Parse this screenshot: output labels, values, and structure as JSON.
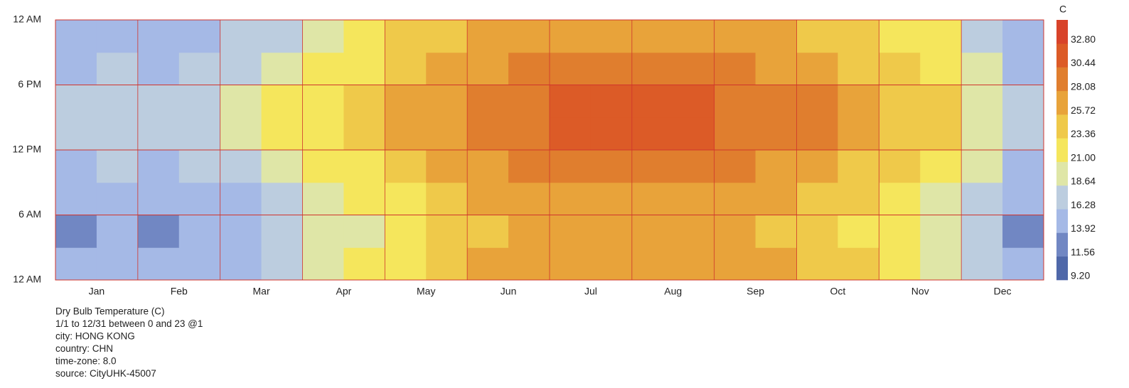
{
  "chart_data": {
    "type": "heatmap",
    "categories": [
      "Jan",
      "Feb",
      "Mar",
      "Apr",
      "May",
      "Jun",
      "Jul",
      "Aug",
      "Sep",
      "Oct",
      "Nov",
      "Dec"
    ],
    "hour_bins": [
      0,
      3,
      6,
      9,
      12,
      15,
      18,
      21,
      24
    ],
    "ylim": [
      0,
      24
    ],
    "yticks": [
      {
        "value": 0,
        "label": "12 AM"
      },
      {
        "value": 6,
        "label": "6 AM"
      },
      {
        "value": 12,
        "label": "12 PM"
      },
      {
        "value": 18,
        "label": "6 PM"
      },
      {
        "value": 24,
        "label": "12 AM"
      }
    ],
    "grid": true,
    "grid_color": "#d0342c",
    "values": [
      [
        14,
        14.5,
        14,
        14.5,
        16,
        17.5,
        19.5,
        21,
        23,
        24.5,
        26,
        26.5,
        27,
        27.3,
        27,
        27,
        26.5,
        26,
        25,
        23.5,
        22,
        20.5,
        17,
        14
      ],
      [
        13.5,
        14,
        13.5,
        14,
        15.5,
        17,
        19,
        20.5,
        22.5,
        24,
        25.5,
        26,
        26.5,
        26.8,
        26.5,
        26.5,
        26,
        25.5,
        24.5,
        23,
        21.5,
        20,
        16.5,
        13.5
      ],
      [
        14,
        14.5,
        14,
        14.5,
        16,
        17.5,
        19.5,
        21,
        23,
        24.5,
        26,
        26.5,
        27,
        27.3,
        27,
        27,
        26.5,
        26,
        25,
        23.5,
        22,
        20.5,
        17,
        14
      ],
      [
        16,
        16.5,
        16,
        16.5,
        18,
        19.5,
        21.5,
        23,
        25,
        26.5,
        28,
        28.5,
        29,
        29.3,
        29,
        29,
        28.5,
        28,
        27,
        25.5,
        24,
        22.5,
        19,
        16
      ],
      [
        17.5,
        18,
        17.5,
        18,
        19.5,
        21,
        23,
        24.5,
        26.5,
        28,
        29.5,
        30,
        30.5,
        30.8,
        30.5,
        30.5,
        30,
        29.5,
        28.5,
        27,
        25.5,
        24,
        20.5,
        17.5
      ],
      [
        17.5,
        18,
        17.5,
        18,
        19.5,
        21,
        23,
        24.5,
        26.5,
        28,
        29.5,
        30,
        30.5,
        30.8,
        30.5,
        30.5,
        30,
        29.5,
        28.5,
        27,
        25.5,
        24,
        20.5,
        17.5
      ],
      [
        16,
        16.5,
        16,
        16.5,
        18,
        19.5,
        21.5,
        23,
        25,
        26.5,
        28,
        28.5,
        29,
        29.3,
        29,
        29,
        28.5,
        28,
        27,
        25.5,
        24,
        22.5,
        19,
        16
      ],
      [
        14.7,
        15.2,
        14.7,
        15.2,
        16.7,
        18.2,
        20.2,
        21.7,
        23.7,
        25.2,
        26.7,
        27.2,
        27.7,
        28,
        27.7,
        27.7,
        27.2,
        26.7,
        25.7,
        24.2,
        22.7,
        21.2,
        17.7,
        14.7
      ]
    ],
    "legend_title": "C",
    "zlim": [
      9.2,
      35.16
    ],
    "zticks": [
      {
        "value": 9.2,
        "label": "9.20"
      },
      {
        "value": 11.56,
        "label": "11.56"
      },
      {
        "value": 13.92,
        "label": "13.92"
      },
      {
        "value": 16.28,
        "label": "16.28"
      },
      {
        "value": 18.64,
        "label": "18.64"
      },
      {
        "value": 21,
        "label": "21.00"
      },
      {
        "value": 23.36,
        "label": "23.36"
      },
      {
        "value": 25.72,
        "label": "25.72"
      },
      {
        "value": 28.08,
        "label": "28.08"
      },
      {
        "value": 30.44,
        "label": "30.44"
      },
      {
        "value": 32.8,
        "label": "32.80"
      }
    ],
    "colors": [
      "#4f68a9",
      "#7187c3",
      "#a5b9e6",
      "#bccddf",
      "#dfe6a7",
      "#f5e65c",
      "#efc94a",
      "#e8a33a",
      "#e07e2e",
      "#dc5b27",
      "#d8432a"
    ],
    "title": "Dry Bulb Temperature (C)",
    "info": [
      "1/1 to 12/31 between 0 and 23 @1",
      "city: HONG KONG",
      "country: CHN",
      "time-zone: 8.0",
      "source: CityUHK-45007"
    ]
  }
}
